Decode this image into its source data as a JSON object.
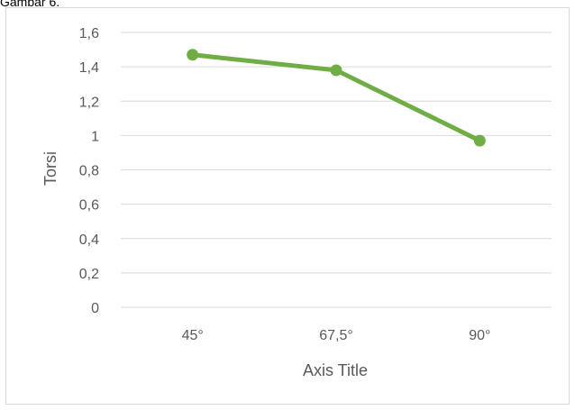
{
  "caption": "Gambar 6.",
  "colors": {
    "series": "#70ad47",
    "grid": "#d9d9d9",
    "text": "#595959"
  },
  "chart_data": {
    "type": "line",
    "categories": [
      "45°",
      "67,5°",
      "90°"
    ],
    "series": [
      {
        "values": [
          1.47,
          1.38,
          0.97
        ]
      }
    ],
    "xlabel": "Axis Title",
    "ylabel": "Torsi",
    "ylim": [
      0,
      1.6
    ],
    "yticks": [
      "0",
      "0,2",
      "0,4",
      "0,6",
      "0,8",
      "1",
      "1,2",
      "1,4",
      "1,6"
    ],
    "grid": true,
    "legend": "none",
    "markers": true
  }
}
